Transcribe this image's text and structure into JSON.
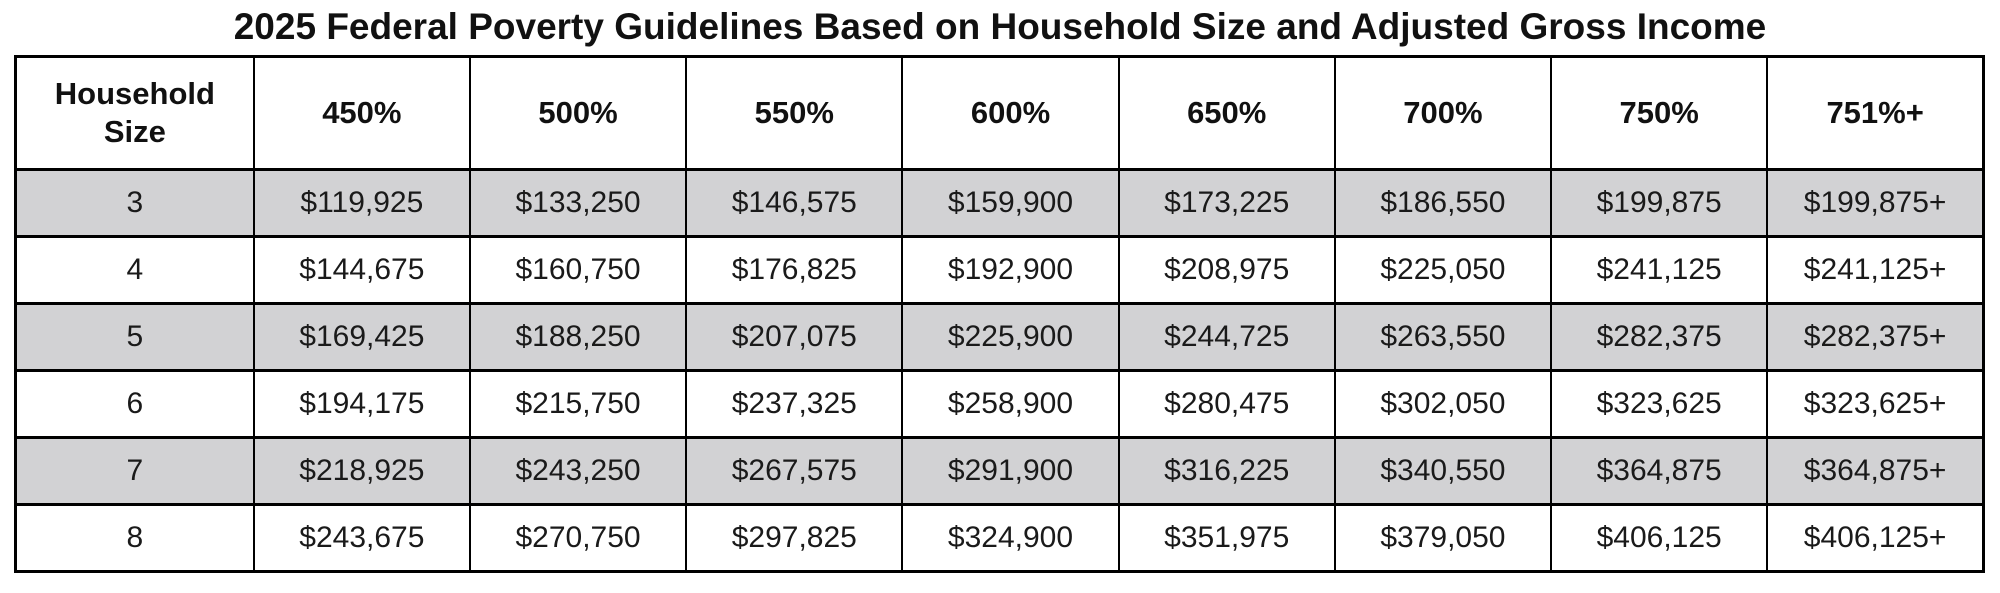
{
  "title": "2025 Federal Poverty Guidelines Based on Household Size and Adjusted Gross Income",
  "colors": {
    "shaded_row": "#d2d2d4",
    "border": "#000000",
    "text": "#1a1a1a"
  },
  "chart_data": {
    "type": "table",
    "title": "2025 Federal Poverty Guidelines Based on Household Size and Adjusted Gross Income",
    "columns": [
      "Household\nSize",
      "450%",
      "500%",
      "550%",
      "600%",
      "650%",
      "700%",
      "750%",
      "751%+"
    ],
    "rows": [
      {
        "household_size": "3",
        "shaded": true,
        "values": [
          "$119,925",
          "$133,250",
          "$146,575",
          "$159,900",
          "$173,225",
          "$186,550",
          "$199,875",
          "$199,875+"
        ]
      },
      {
        "household_size": "4",
        "shaded": false,
        "values": [
          "$144,675",
          "$160,750",
          "$176,825",
          "$192,900",
          "$208,975",
          "$225,050",
          "$241,125",
          "$241,125+"
        ]
      },
      {
        "household_size": "5",
        "shaded": true,
        "values": [
          "$169,425",
          "$188,250",
          "$207,075",
          "$225,900",
          "$244,725",
          "$263,550",
          "$282,375",
          "$282,375+"
        ]
      },
      {
        "household_size": "6",
        "shaded": false,
        "values": [
          "$194,175",
          "$215,750",
          "$237,325",
          "$258,900",
          "$280,475",
          "$302,050",
          "$323,625",
          "$323,625+"
        ]
      },
      {
        "household_size": "7",
        "shaded": true,
        "values": [
          "$218,925",
          "$243,250",
          "$267,575",
          "$291,900",
          "$316,225",
          "$340,550",
          "$364,875",
          "$364,875+"
        ]
      },
      {
        "household_size": "8",
        "shaded": false,
        "values": [
          "$243,675",
          "$270,750",
          "$297,825",
          "$324,900",
          "$351,975",
          "$379,050",
          "$406,125",
          "$406,125+"
        ]
      }
    ]
  }
}
